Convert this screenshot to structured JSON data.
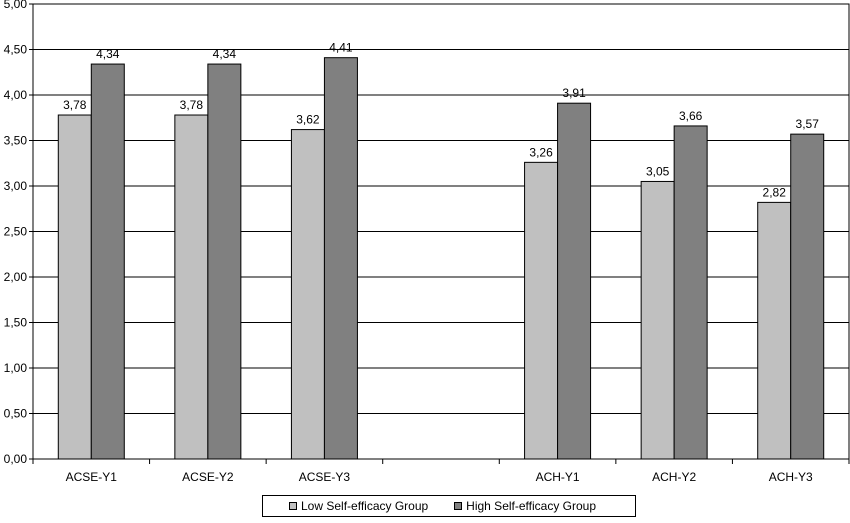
{
  "chart_data": {
    "type": "bar",
    "categories": [
      "ACSE-Y1",
      "ACSE-Y2",
      "ACSE-Y3",
      "",
      "ACH-Y1",
      "ACH-Y2",
      "ACH-Y3"
    ],
    "series": [
      {
        "name": "Low Self-efficacy Group",
        "values": [
          3.78,
          3.78,
          3.62,
          null,
          3.26,
          3.05,
          2.82
        ],
        "labels": [
          "3,78",
          "3,78",
          "3,62",
          "",
          "3,26",
          "3,05",
          "2,82"
        ],
        "color": "#c0c0c0"
      },
      {
        "name": "High Self-efficacy Group",
        "values": [
          4.34,
          4.34,
          4.41,
          null,
          3.91,
          3.66,
          3.57
        ],
        "labels": [
          "4,34",
          "4,34",
          "4,41",
          "",
          "3,91",
          "3,66",
          "3,57"
        ],
        "color": "#808080"
      }
    ],
    "y_ticks": [
      "0,00",
      "0,50",
      "1,00",
      "1,50",
      "2,00",
      "2,50",
      "3,00",
      "3,50",
      "4,00",
      "4,50",
      "5,00"
    ],
    "ylim": [
      0,
      5
    ],
    "grid": true,
    "legend_position": "bottom"
  }
}
